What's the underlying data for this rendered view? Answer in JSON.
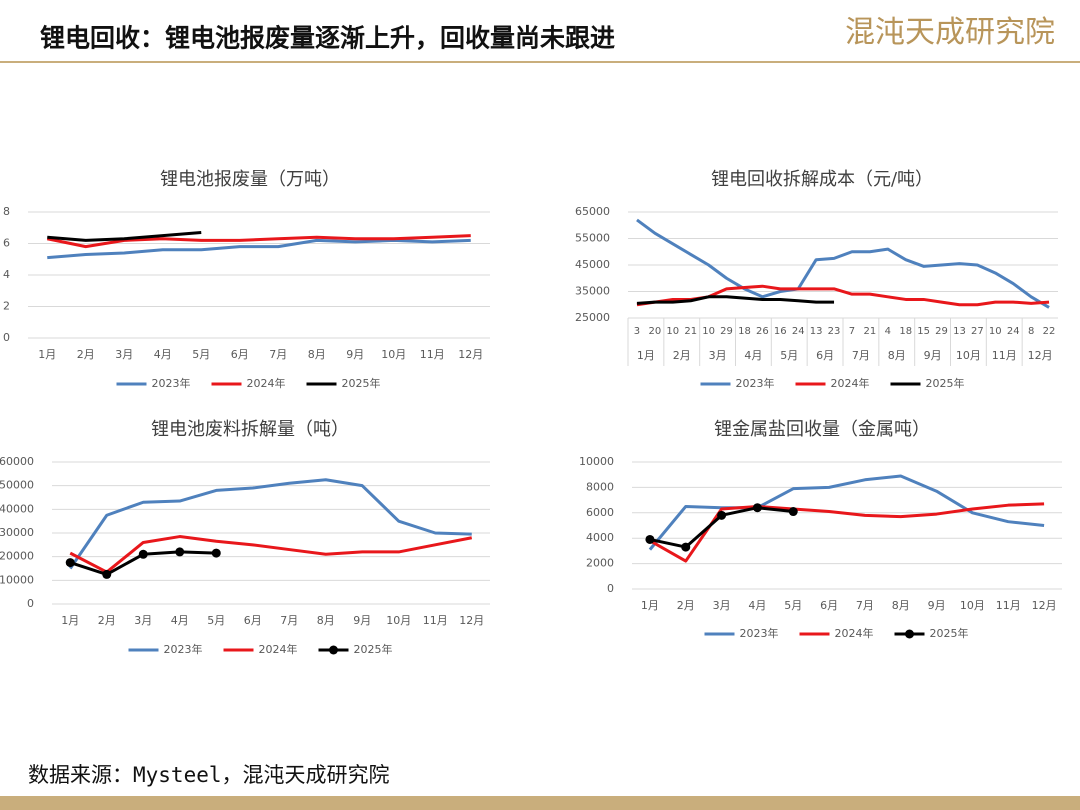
{
  "header": {
    "title": "锂电回收：锂电池报废量逐渐上升，回收量尚未跟进",
    "logo": "混沌天成研究院"
  },
  "footer": {
    "source": "数据来源：Mysteel，混沌天成研究院"
  },
  "chart_data": [
    {
      "type": "line",
      "title": "锂电池报废量（万吨）",
      "categories": [
        "1月",
        "2月",
        "3月",
        "4月",
        "5月",
        "6月",
        "7月",
        "8月",
        "9月",
        "10月",
        "11月",
        "12月"
      ],
      "ylim": [
        0,
        8
      ],
      "yticks": [
        0,
        2,
        4,
        6,
        8
      ],
      "grid": true,
      "legend": "bottom",
      "series": [
        {
          "name": "2023年",
          "color": "#4f81bd",
          "values": [
            5.1,
            5.3,
            5.4,
            5.6,
            5.6,
            5.8,
            5.8,
            6.2,
            6.1,
            6.2,
            6.1,
            6.2
          ]
        },
        {
          "name": "2024年",
          "color": "#e8171b",
          "values": [
            6.3,
            5.8,
            6.2,
            6.3,
            6.2,
            6.2,
            6.3,
            6.4,
            6.3,
            6.3,
            6.4,
            6.5
          ]
        },
        {
          "name": "2025年",
          "color": "#000000",
          "values": [
            6.4,
            6.2,
            6.3,
            6.5,
            6.7,
            null,
            null,
            null,
            null,
            null,
            null,
            null
          ]
        }
      ]
    },
    {
      "type": "line",
      "title": "锂电回收拆解成本（元/吨）",
      "categories": [
        "3",
        "20",
        "10",
        "21",
        "10",
        "29",
        "18",
        "26",
        "16",
        "24",
        "13",
        "23",
        "7",
        "21",
        "4",
        "18",
        "15",
        "29",
        "13",
        "27",
        "10",
        "24",
        "8",
        "22"
      ],
      "x_groups": [
        "1月",
        "2月",
        "3月",
        "4月",
        "5月",
        "6月",
        "7月",
        "8月",
        "9月",
        "10月",
        "11月",
        "12月"
      ],
      "ylim": [
        25000,
        65000
      ],
      "yticks": [
        25000,
        35000,
        45000,
        55000,
        65000
      ],
      "grid": true,
      "legend": "bottom",
      "series": [
        {
          "name": "2023年",
          "color": "#4f81bd",
          "values": [
            62000,
            57000,
            53000,
            49000,
            45000,
            40000,
            36000,
            33000,
            35000,
            36000,
            47000,
            47500,
            50000,
            50000,
            51000,
            47000,
            44500,
            45000,
            45500,
            45000,
            42000,
            38000,
            33000,
            29000
          ]
        },
        {
          "name": "2024年",
          "color": "#e8171b",
          "values": [
            30000,
            31000,
            32000,
            32000,
            33000,
            36000,
            36500,
            37000,
            36000,
            36000,
            36000,
            36000,
            34000,
            34000,
            33000,
            32000,
            32000,
            31000,
            30000,
            30000,
            31000,
            31000,
            30500,
            31000
          ]
        },
        {
          "name": "2025年",
          "color": "#000000",
          "values": [
            30500,
            31000,
            31000,
            31500,
            33000,
            33000,
            32500,
            32000,
            32000,
            31500,
            31000,
            31000,
            null,
            null,
            null,
            null,
            null,
            null,
            null,
            null,
            null,
            null,
            null,
            null
          ]
        }
      ]
    },
    {
      "type": "line",
      "title": "锂电池废料拆解量（吨）",
      "categories": [
        "1月",
        "2月",
        "3月",
        "4月",
        "5月",
        "6月",
        "7月",
        "8月",
        "9月",
        "10月",
        "11月",
        "12月"
      ],
      "ylim": [
        0,
        60000
      ],
      "yticks": [
        0,
        10000,
        20000,
        30000,
        40000,
        50000,
        60000
      ],
      "grid": true,
      "legend": "bottom",
      "series": [
        {
          "name": "2023年",
          "color": "#4f81bd",
          "values": [
            15000,
            37500,
            43000,
            43500,
            48000,
            49000,
            51000,
            52500,
            50000,
            35000,
            30000,
            29500
          ]
        },
        {
          "name": "2024年",
          "color": "#e8171b",
          "values": [
            21500,
            13500,
            26000,
            28500,
            26500,
            25000,
            23000,
            21000,
            22000,
            22000,
            25000,
            28000
          ]
        },
        {
          "name": "2025年",
          "color": "#000000",
          "markers": true,
          "values": [
            17500,
            12500,
            21000,
            22000,
            21500,
            null,
            null,
            null,
            null,
            null,
            null,
            null
          ]
        }
      ]
    },
    {
      "type": "line",
      "title": "锂金属盐回收量（金属吨）",
      "categories": [
        "1月",
        "2月",
        "3月",
        "4月",
        "5月",
        "6月",
        "7月",
        "8月",
        "9月",
        "10月",
        "11月",
        "12月"
      ],
      "ylim": [
        0,
        10000
      ],
      "yticks": [
        0,
        2000,
        4000,
        6000,
        8000,
        10000
      ],
      "grid": true,
      "legend": "bottom",
      "series": [
        {
          "name": "2023年",
          "color": "#4f81bd",
          "values": [
            3100,
            6500,
            6400,
            6400,
            7900,
            8000,
            8600,
            8900,
            7700,
            6000,
            5300,
            5000
          ]
        },
        {
          "name": "2024年",
          "color": "#e8171b",
          "values": [
            3800,
            2200,
            6300,
            6500,
            6300,
            6100,
            5800,
            5700,
            5900,
            6300,
            6600,
            6700
          ]
        },
        {
          "name": "2025年",
          "color": "#000000",
          "markers": true,
          "values": [
            3900,
            3300,
            5800,
            6400,
            6100,
            null,
            null,
            null,
            null,
            null,
            null,
            null
          ]
        }
      ]
    }
  ]
}
